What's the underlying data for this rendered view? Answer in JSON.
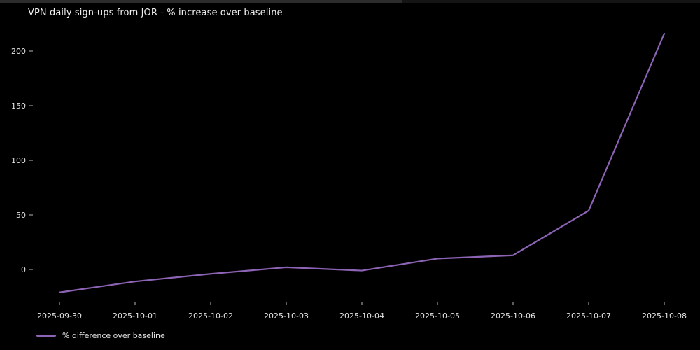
{
  "window": {
    "top_strip": {
      "left_color": "#2c2c2c",
      "right_color": "#151515"
    }
  },
  "chart": {
    "title": "VPN daily sign-ups from JOR - % increase over baseline",
    "legend": {
      "label": "% difference over baseline"
    }
  },
  "colors": {
    "background": "#000000",
    "line": "#8c63b5",
    "text": "#e4e4e4",
    "tick": "#b8b8b8"
  },
  "chart_data": {
    "type": "line",
    "title": "VPN daily sign-ups from JOR - % increase over baseline",
    "x": [
      "2025-09-30",
      "2025-10-01",
      "2025-10-02",
      "2025-10-03",
      "2025-10-04",
      "2025-10-05",
      "2025-10-06",
      "2025-10-07",
      "2025-10-08"
    ],
    "series": [
      {
        "name": "% difference over baseline",
        "color": "#8c63b5",
        "values": [
          -21,
          -11,
          -4,
          2,
          -1,
          10,
          13,
          54,
          216
        ]
      }
    ],
    "xlabel": "",
    "ylabel": "",
    "yticks": [
      0,
      50,
      100,
      150,
      200
    ],
    "ylim": [
      -35,
      230
    ],
    "grid": false,
    "legend_position": "lower-left",
    "background": "#000000"
  }
}
